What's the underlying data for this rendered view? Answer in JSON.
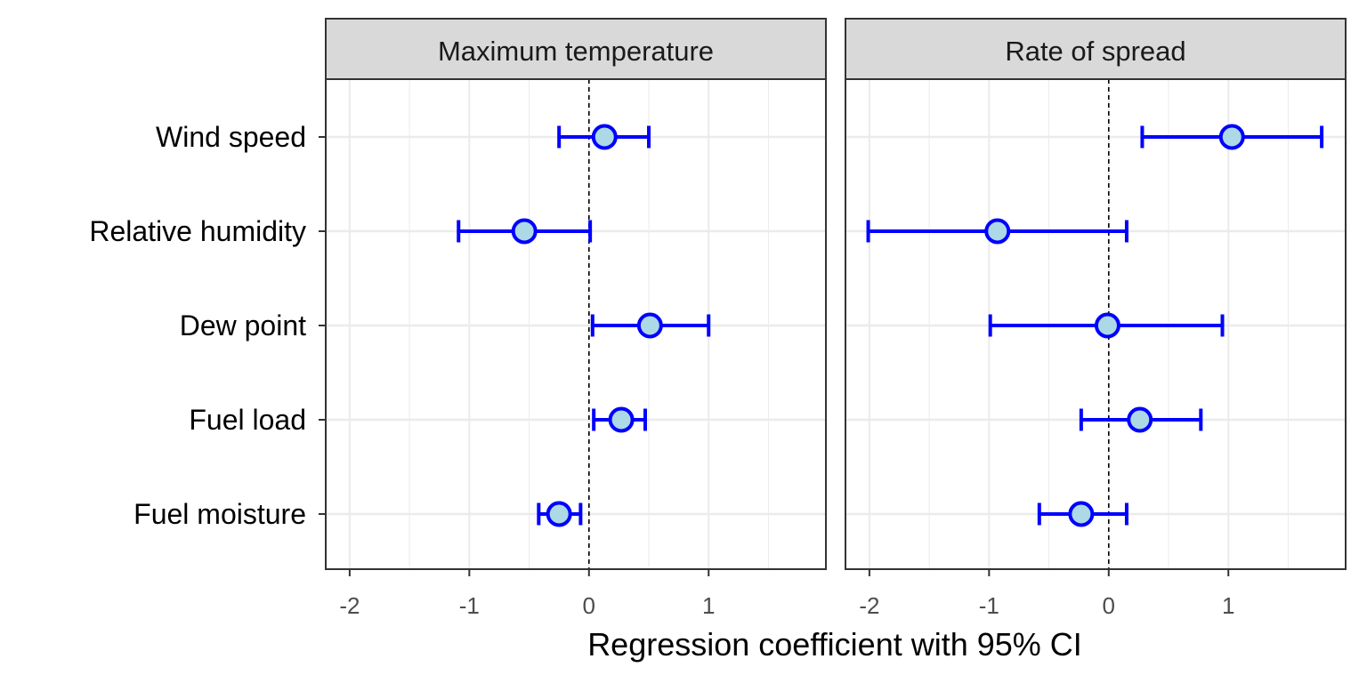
{
  "chart_data": {
    "type": "forest",
    "xlabel": "Regression coefficient with 95% CI",
    "categories": [
      "Wind speed",
      "Relative humidity",
      "Dew point",
      "Fuel load",
      "Fuel moisture"
    ],
    "x_ticks": [
      -2,
      -1,
      0,
      1
    ],
    "x_tick_labels": [
      "-2",
      "-1",
      "0",
      "1"
    ],
    "xlim": [
      -2.2,
      1.98
    ],
    "reference_line": 0,
    "grid": true,
    "colors": {
      "interval": "#0000ff",
      "point_fill": "#add8e6",
      "point_stroke": "#0000ff",
      "strip": "#d9d9d9",
      "grid": "#ebebeb"
    },
    "panels": [
      {
        "title": "Maximum temperature",
        "estimates": [
          0.13,
          -0.54,
          0.51,
          0.27,
          -0.25
        ],
        "lower": [
          -0.25,
          -1.09,
          0.03,
          0.04,
          -0.42
        ],
        "upper": [
          0.5,
          0.01,
          1.0,
          0.47,
          -0.07
        ]
      },
      {
        "title": "Rate of spread",
        "estimates": [
          1.03,
          -0.93,
          -0.01,
          0.26,
          -0.23
        ],
        "lower": [
          0.28,
          -2.01,
          -0.99,
          -0.23,
          -0.58
        ],
        "upper": [
          1.78,
          0.15,
          0.95,
          0.77,
          0.15
        ]
      }
    ]
  }
}
